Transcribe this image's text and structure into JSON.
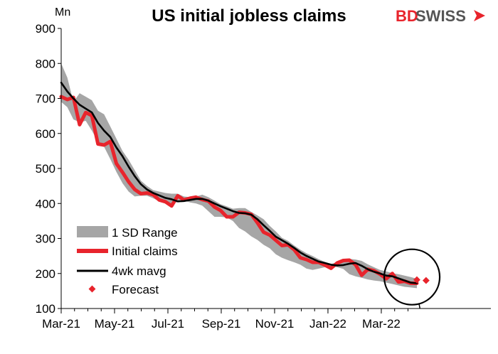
{
  "brand": {
    "logo_text_1": "BD",
    "logo_text_2": "SWISS",
    "colors": {
      "accent": "#e8242c",
      "gray": "#555555"
    }
  },
  "chart_data": {
    "type": "line",
    "title": "US initial jobless claims",
    "unit_label": "Mn",
    "xlabel": "",
    "ylabel": "",
    "ylim": [
      100,
      900
    ],
    "yticks": [
      100,
      200,
      300,
      400,
      500,
      600,
      700,
      800,
      900
    ],
    "xtick_labels": [
      "Mar-21",
      "May-21",
      "Jul-21",
      "Sep-21",
      "Nov-21",
      "Jan-22",
      "Mar-22"
    ],
    "x_week_range": [
      0,
      58
    ],
    "grid": false,
    "legend_position": "bottom-left",
    "colors": {
      "range": "#a6a6a6",
      "claims": "#e8242c",
      "mavg": "#000000",
      "forecast": "#e8242c"
    },
    "series": [
      {
        "name": "1 SD Range",
        "kind": "band",
        "high": [
          800,
          760,
          690,
          715,
          705,
          695,
          665,
          655,
          620,
          585,
          550,
          525,
          495,
          465,
          450,
          438,
          434,
          430,
          428,
          428,
          420,
          418,
          420,
          425,
          418,
          408,
          398,
          392,
          385,
          387,
          387,
          376,
          366,
          355,
          336,
          320,
          302,
          293,
          280,
          268,
          258,
          250,
          241,
          233,
          227,
          232,
          240,
          242,
          240,
          236,
          226,
          218,
          210,
          206,
          201,
          198,
          194,
          190,
          185
        ],
        "low": [
          690,
          675,
          640,
          632,
          636,
          608,
          577,
          562,
          527,
          490,
          458,
          434,
          420,
          422,
          422,
          415,
          406,
          400,
          400,
          404,
          408,
          403,
          400,
          394,
          378,
          362,
          362,
          360,
          350,
          330,
          320,
          306,
          296,
          282,
          272,
          255,
          245,
          238,
          232,
          225,
          214,
          210,
          214,
          218,
          221,
          218,
          213,
          198,
          192,
          188,
          183,
          180,
          178,
          174,
          170,
          166,
          162,
          160,
          158
        ]
      },
      {
        "name": "Initial claims",
        "kind": "line",
        "values": [
          705,
          697,
          703,
          625,
          660,
          651,
          570,
          567,
          577,
          514,
          489,
          462,
          440,
          428,
          430,
          425,
          410,
          405,
          393,
          422,
          410,
          415,
          418,
          411,
          407,
          390,
          380,
          362,
          362,
          375,
          373,
          369,
          345,
          318,
          310,
          295,
          280,
          282,
          268,
          245,
          240,
          232,
          232,
          224,
          215,
          230,
          237,
          238,
          225,
          195,
          212,
          208,
          198,
          185,
          200,
          176,
          178,
          172,
          172
        ]
      },
      {
        "name": "4wk mavg",
        "kind": "line",
        "values": [
          745,
          720,
          700,
          682,
          671,
          660,
          630,
          608,
          590,
          560,
          535,
          505,
          478,
          455,
          440,
          430,
          423,
          416,
          412,
          406,
          407,
          410,
          413,
          413,
          408,
          400,
          392,
          385,
          378,
          373,
          372,
          368,
          355,
          338,
          322,
          305,
          295,
          285,
          273,
          260,
          250,
          242,
          234,
          230,
          225,
          223,
          224,
          228,
          230,
          222,
          212,
          205,
          200,
          194,
          192,
          186,
          180,
          174,
          172
        ]
      },
      {
        "name": "Forecast",
        "kind": "points",
        "points": [
          {
            "x": 58,
            "y": 182
          },
          {
            "x": 59.5,
            "y": 180
          }
        ]
      }
    ],
    "annotation": {
      "type": "circle",
      "x_center": 57.2,
      "y_center": 190,
      "pointer_to": {
        "x": 58.5,
        "y": 100
      }
    }
  }
}
